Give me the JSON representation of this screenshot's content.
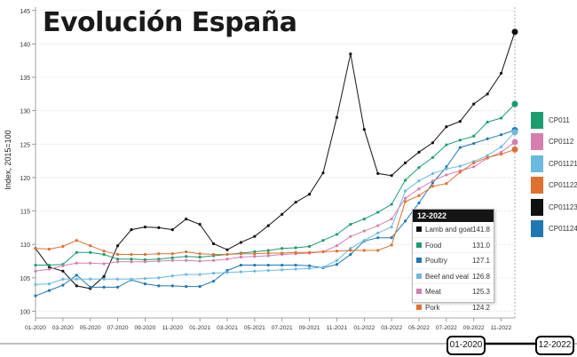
{
  "title": "Evolución España",
  "chart_data": {
    "type": "line",
    "ylabel": "Index, 2015=100",
    "ylim": [
      99,
      145.5
    ],
    "yticks": [
      100,
      105,
      110,
      115,
      120,
      125,
      130,
      135,
      140,
      145
    ],
    "xticks": [
      "01-2020",
      "03-2020",
      "05-2020",
      "07-2020",
      "09-2020",
      "11-2020",
      "01-2021",
      "03-2021",
      "05-2021",
      "07-2021",
      "09-2021",
      "11-2021",
      "01-2022",
      "03-2022",
      "05-2022",
      "07-2022",
      "09-2022",
      "11-2022"
    ],
    "x": [
      "01-2020",
      "02-2020",
      "03-2020",
      "04-2020",
      "05-2020",
      "06-2020",
      "07-2020",
      "08-2020",
      "09-2020",
      "10-2020",
      "11-2020",
      "12-2020",
      "01-2021",
      "02-2021",
      "03-2021",
      "04-2021",
      "05-2021",
      "06-2021",
      "07-2021",
      "08-2021",
      "09-2021",
      "10-2021",
      "11-2021",
      "12-2021",
      "01-2022",
      "02-2022",
      "03-2022",
      "04-2022",
      "05-2022",
      "06-2022",
      "07-2022",
      "08-2022",
      "09-2022",
      "10-2022",
      "11-2022",
      "12-2022"
    ],
    "series": [
      {
        "name": "Lamb and goat",
        "code": "CP01123",
        "color": "#111111",
        "values": [
          109.4,
          106.6,
          106,
          103.8,
          103.4,
          105.2,
          109.8,
          112.2,
          112.6,
          112.5,
          112.2,
          113.8,
          113,
          110.1,
          109.2,
          110.3,
          111.2,
          112.8,
          114.5,
          116.3,
          117.5,
          120.7,
          129,
          138.5,
          127.2,
          120.6,
          120.3,
          122.2,
          123.8,
          125.2,
          127.6,
          128.4,
          131,
          132.5,
          135.6,
          141.8
        ]
      },
      {
        "name": "Food",
        "code": "CP011",
        "color": "#1a9e6e",
        "values": [
          106.9,
          106.9,
          107,
          108.8,
          108.8,
          108.5,
          107.8,
          107.8,
          107.7,
          107.8,
          108,
          108.2,
          108.1,
          108.3,
          108.5,
          108.7,
          108.9,
          109.1,
          109.4,
          109.5,
          109.7,
          110.6,
          111.5,
          113,
          113.8,
          114.8,
          116,
          119.6,
          121.5,
          123,
          124.9,
          125.6,
          126.2,
          128.3,
          128.9,
          131
        ]
      },
      {
        "name": "Poultry",
        "code": "CP01124",
        "color": "#1f77b4",
        "values": [
          102.3,
          103.1,
          103.9,
          105.4,
          103.6,
          103.6,
          103.6,
          104.7,
          104.1,
          103.8,
          103.8,
          103.7,
          103.7,
          104.5,
          106.1,
          106.9,
          106.9,
          106.9,
          106.9,
          106.9,
          106.8,
          106.5,
          107,
          108.5,
          110.5,
          111,
          111,
          113.5,
          116.2,
          119.2,
          121.6,
          124.5,
          125.1,
          125.8,
          126.4,
          127.1
        ]
      },
      {
        "name": "Beef and veal",
        "code": "CP01121",
        "color": "#6cb9e0",
        "values": [
          104,
          104.1,
          104.8,
          104.8,
          104.8,
          104.8,
          104.8,
          104.8,
          104.9,
          105,
          105.3,
          105.5,
          105.5,
          105.7,
          105.8,
          105.9,
          106,
          106.1,
          106.2,
          106.3,
          106.4,
          106.6,
          107.6,
          109.4,
          110.6,
          111.7,
          112.6,
          118,
          119.5,
          120.6,
          121.3,
          121.7,
          122.4,
          123.3,
          124.6,
          126.8
        ]
      },
      {
        "name": "Meat",
        "code": "CP0112",
        "color": "#d47fb0",
        "values": [
          106,
          106.3,
          106.8,
          107.2,
          107.2,
          107.1,
          107.4,
          107.4,
          107.4,
          107.5,
          107.6,
          107.6,
          107.5,
          107.6,
          107.8,
          108.1,
          108.2,
          108.3,
          108.5,
          108.6,
          108.7,
          108.9,
          109.8,
          111.2,
          112,
          112.8,
          113.8,
          116.9,
          118.3,
          119.5,
          120.4,
          121,
          121.6,
          122.9,
          123.8,
          125.3
        ]
      },
      {
        "name": "Pork",
        "code": "CP01122",
        "color": "#e07030",
        "values": [
          109.4,
          109.3,
          109.7,
          110.6,
          109.8,
          109,
          108.5,
          108.5,
          108.5,
          108.6,
          108.6,
          108.9,
          108.6,
          108.5,
          108.5,
          108.6,
          108.6,
          108.7,
          108.7,
          108.8,
          108.8,
          108.9,
          109,
          109.1,
          109.1,
          109.1,
          109.9,
          116.4,
          117.3,
          118.7,
          119.1,
          120.8,
          122.2,
          123,
          123.5,
          124.2
        ]
      }
    ]
  },
  "legend": [
    {
      "label": "CP011",
      "color": "#1a9e6e"
    },
    {
      "label": "CP0112",
      "color": "#d47fb0"
    },
    {
      "label": "CP01121",
      "color": "#6cb9e0"
    },
    {
      "label": "CP01122",
      "color": "#e07030"
    },
    {
      "label": "CP01123",
      "color": "#111111"
    },
    {
      "label": "CP01124",
      "color": "#1f77b4"
    }
  ],
  "tooltip": {
    "period": "12-2022",
    "rows": [
      {
        "name": "Lamb and goat",
        "value": "141.8",
        "color": "#111111"
      },
      {
        "name": "Food",
        "value": "131.0",
        "color": "#1a9e6e"
      },
      {
        "name": "Poultry",
        "value": "127.1",
        "color": "#1f77b4"
      },
      {
        "name": "Beef and veal",
        "value": "126.8",
        "color": "#6cb9e0"
      },
      {
        "name": "Meat",
        "value": "125.3",
        "color": "#d47fb0"
      },
      {
        "name": "Pork",
        "value": "124.2",
        "color": "#e07030"
      }
    ]
  },
  "range": {
    "start": "01-2020",
    "end": "12-2022"
  }
}
